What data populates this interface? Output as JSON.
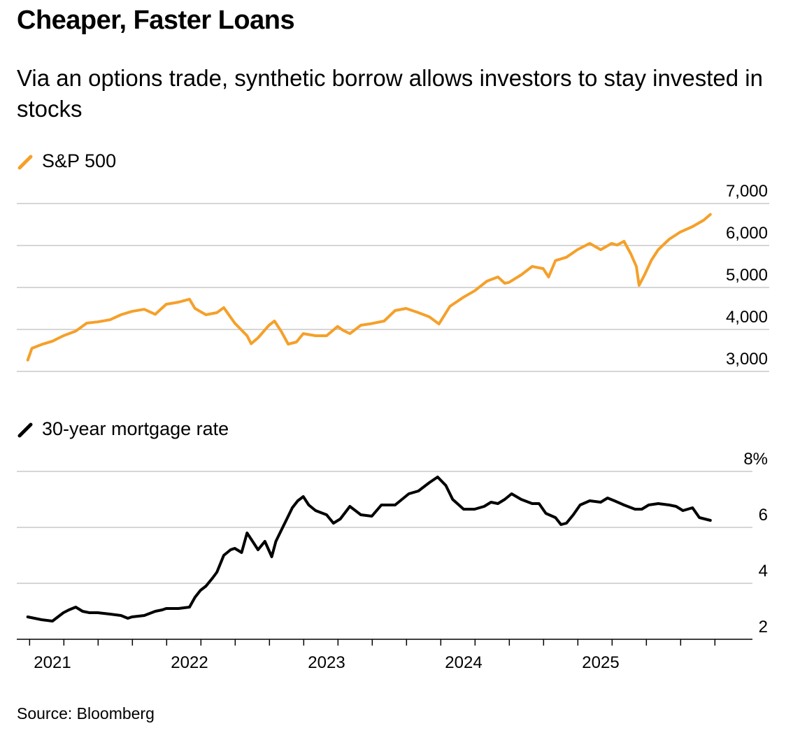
{
  "title": "Cheaper, Faster Loans",
  "subtitle": "Via an options trade, synthetic borrow allows investors to stay invested in stocks",
  "source": "Source: Bloomberg",
  "colors": {
    "sp500": "#f5a02a",
    "mortgage": "#000000",
    "grid": "#c8c8c8"
  },
  "chart_data": [
    {
      "type": "line",
      "title": "S&P 500",
      "legend": "S&P 500",
      "x_range": [
        2020.8,
        2025.85
      ],
      "ylim": [
        3000,
        7000
      ],
      "y_ticks": [
        3000,
        4000,
        5000,
        6000,
        7000
      ],
      "y_tick_labels": [
        "3,000",
        "4,000",
        "5,000",
        "6,000",
        "7,000"
      ],
      "series": [
        {
          "name": "S&P 500",
          "x": [
            2020.82,
            2020.85,
            2020.92,
            2021.0,
            2021.08,
            2021.17,
            2021.25,
            2021.33,
            2021.42,
            2021.5,
            2021.58,
            2021.67,
            2021.75,
            2021.83,
            2021.92,
            2022.0,
            2022.04,
            2022.12,
            2022.2,
            2022.25,
            2022.33,
            2022.42,
            2022.45,
            2022.5,
            2022.58,
            2022.62,
            2022.67,
            2022.72,
            2022.78,
            2022.83,
            2022.92,
            2023.0,
            2023.08,
            2023.12,
            2023.17,
            2023.25,
            2023.33,
            2023.42,
            2023.5,
            2023.58,
            2023.67,
            2023.75,
            2023.82,
            2023.9,
            2024.0,
            2024.08,
            2024.17,
            2024.25,
            2024.3,
            2024.33,
            2024.42,
            2024.5,
            2024.58,
            2024.62,
            2024.67,
            2024.75,
            2024.83,
            2024.92,
            2025.0,
            2025.08,
            2025.12,
            2025.17,
            2025.22,
            2025.26,
            2025.28,
            2025.32,
            2025.37,
            2025.42,
            2025.5,
            2025.58,
            2025.67,
            2025.75,
            2025.8
          ],
          "values": [
            3270,
            3550,
            3640,
            3720,
            3850,
            3960,
            4150,
            4180,
            4230,
            4350,
            4430,
            4480,
            4360,
            4600,
            4650,
            4720,
            4500,
            4350,
            4400,
            4520,
            4150,
            3850,
            3660,
            3800,
            4100,
            4200,
            3950,
            3650,
            3700,
            3900,
            3850,
            3850,
            4070,
            3980,
            3900,
            4100,
            4140,
            4200,
            4450,
            4500,
            4400,
            4300,
            4130,
            4550,
            4770,
            4920,
            5150,
            5250,
            5100,
            5120,
            5300,
            5500,
            5450,
            5250,
            5640,
            5720,
            5900,
            6050,
            5900,
            6050,
            6010,
            6100,
            5800,
            5500,
            5050,
            5300,
            5650,
            5900,
            6150,
            6320,
            6450,
            6600,
            6740
          ]
        }
      ]
    },
    {
      "type": "line",
      "title": "30-year mortgage rate",
      "legend": "30-year mortgage rate",
      "x_range": [
        2020.8,
        2025.85
      ],
      "ylim": [
        2,
        8
      ],
      "y_ticks": [
        2,
        4,
        6,
        8
      ],
      "y_tick_labels": [
        "2",
        "4",
        "6",
        "8%"
      ],
      "x_ticks": [
        2021,
        2022,
        2023,
        2024,
        2025
      ],
      "x_tick_labels": [
        "2021",
        "2022",
        "2023",
        "2024",
        "2025"
      ],
      "series": [
        {
          "name": "30-year mortgage rate",
          "x": [
            2020.82,
            2020.87,
            2020.92,
            2021.0,
            2021.04,
            2021.08,
            2021.12,
            2021.17,
            2021.22,
            2021.27,
            2021.33,
            2021.42,
            2021.5,
            2021.55,
            2021.58,
            2021.67,
            2021.75,
            2021.8,
            2021.83,
            2021.92,
            2022.0,
            2022.04,
            2022.08,
            2022.12,
            2022.17,
            2022.2,
            2022.25,
            2022.3,
            2022.33,
            2022.38,
            2022.42,
            2022.46,
            2022.5,
            2022.55,
            2022.6,
            2022.63,
            2022.67,
            2022.71,
            2022.75,
            2022.79,
            2022.83,
            2022.87,
            2022.92,
            2023.0,
            2023.05,
            2023.1,
            2023.17,
            2023.25,
            2023.33,
            2023.4,
            2023.5,
            2023.6,
            2023.67,
            2023.75,
            2023.81,
            2023.87,
            2023.92,
            2024.0,
            2024.08,
            2024.15,
            2024.2,
            2024.25,
            2024.3,
            2024.35,
            2024.42,
            2024.5,
            2024.55,
            2024.6,
            2024.67,
            2024.71,
            2024.75,
            2024.8,
            2024.85,
            2024.92,
            2025.0,
            2025.05,
            2025.1,
            2025.17,
            2025.25,
            2025.3,
            2025.35,
            2025.42,
            2025.5,
            2025.55,
            2025.6,
            2025.67,
            2025.72,
            2025.8
          ],
          "values": [
            2.8,
            2.75,
            2.7,
            2.65,
            2.8,
            2.95,
            3.05,
            3.15,
            3.0,
            2.95,
            2.95,
            2.9,
            2.85,
            2.75,
            2.8,
            2.85,
            3.0,
            3.05,
            3.1,
            3.1,
            3.15,
            3.5,
            3.75,
            3.9,
            4.2,
            4.4,
            5.0,
            5.2,
            5.25,
            5.1,
            5.8,
            5.5,
            5.2,
            5.5,
            4.95,
            5.5,
            5.9,
            6.3,
            6.7,
            6.95,
            7.1,
            6.8,
            6.6,
            6.45,
            6.15,
            6.3,
            6.75,
            6.45,
            6.4,
            6.8,
            6.8,
            7.2,
            7.3,
            7.6,
            7.8,
            7.5,
            7.0,
            6.65,
            6.65,
            6.75,
            6.9,
            6.85,
            7.0,
            7.2,
            7.0,
            6.85,
            6.85,
            6.5,
            6.35,
            6.1,
            6.15,
            6.45,
            6.8,
            6.95,
            6.9,
            7.05,
            6.95,
            6.8,
            6.65,
            6.65,
            6.8,
            6.85,
            6.8,
            6.75,
            6.6,
            6.7,
            6.35,
            6.25
          ]
        }
      ]
    }
  ]
}
